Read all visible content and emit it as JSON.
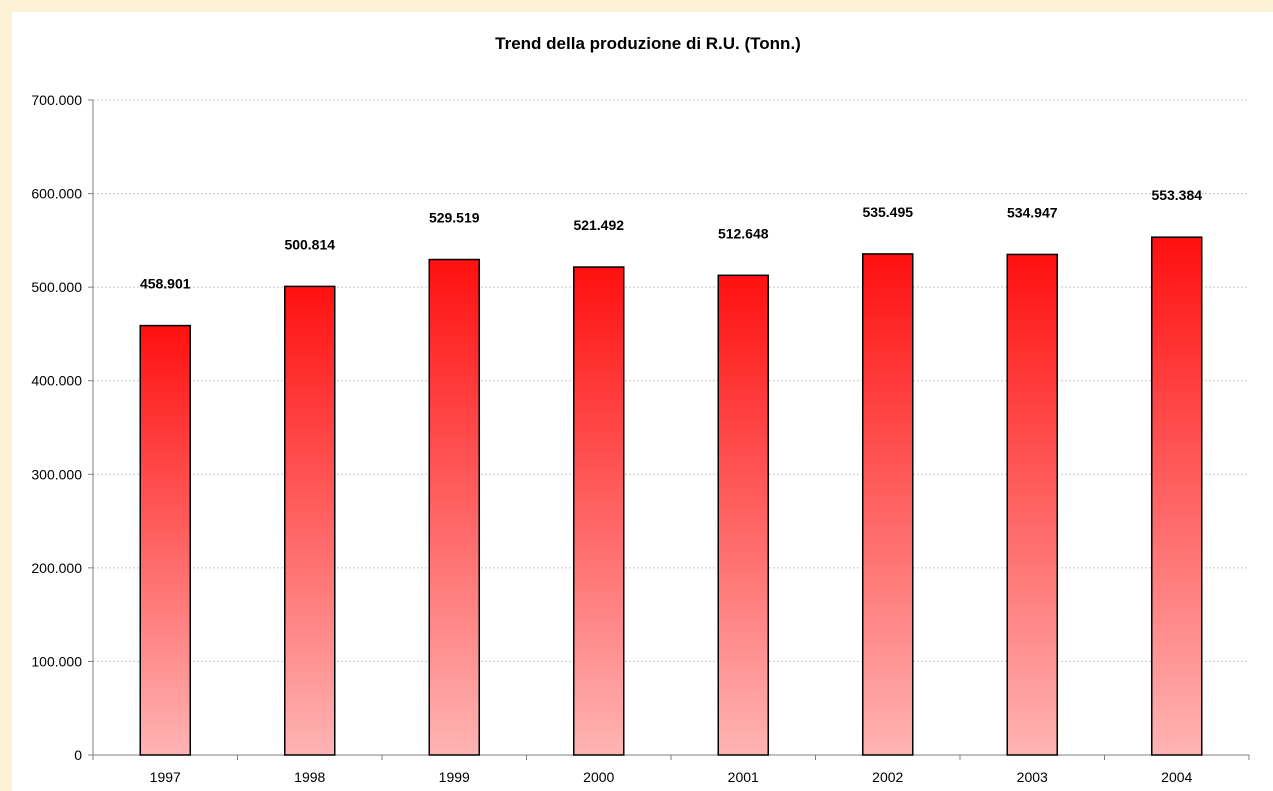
{
  "chart_data": {
    "type": "bar",
    "title": "Trend della produzione di R.U. (Tonn.)",
    "xlabel": "",
    "ylabel": "",
    "categories": [
      "1997",
      "1998",
      "1999",
      "2000",
      "2001",
      "2002",
      "2003",
      "2004"
    ],
    "values": [
      458901,
      500814,
      529519,
      521492,
      512648,
      535495,
      534947,
      553384
    ],
    "value_labels": [
      "458.901",
      "500.814",
      "529.519",
      "521.492",
      "512.648",
      "535.495",
      "534.947",
      "553.384"
    ],
    "ylim": [
      0,
      700000
    ],
    "yticks": [
      0,
      100000,
      200000,
      300000,
      400000,
      500000,
      600000,
      700000
    ],
    "ytick_labels": [
      "0",
      "100.000",
      "200.000",
      "300.000",
      "400.000",
      "500.000",
      "600.000",
      "700.000"
    ],
    "grid": true,
    "legend": "none",
    "colors": {
      "bar_top": "#ff1010",
      "bar_bottom": "#ffb4b4",
      "bar_edge": "#000000",
      "grid": "#c8c8c8",
      "page_background": "#fdf1d6"
    }
  }
}
